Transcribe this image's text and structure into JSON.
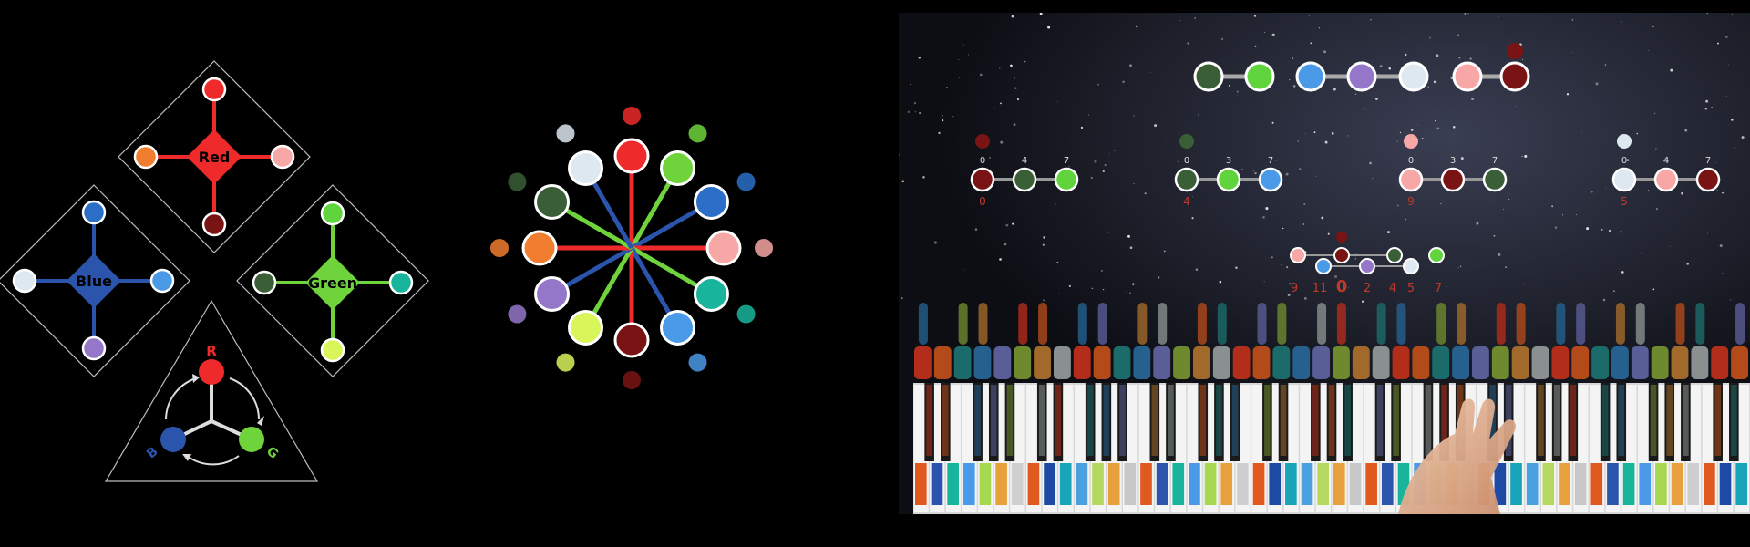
{
  "diamonds": [
    {
      "id": "red",
      "label": "Red",
      "center_color": "#ee2a2a",
      "line_color": "#ee2a2a",
      "nodes": [
        "#ee2a2a",
        "#f7a7a5",
        "#7a1414",
        "#f07e2e"
      ]
    },
    {
      "id": "blue",
      "label": "Blue",
      "center_color": "#2b55ad",
      "line_color": "#2b55ad",
      "nodes": [
        "#2b6ec7",
        "#4a9ae8",
        "#9577c9",
        "#dde8f0"
      ]
    },
    {
      "id": "green",
      "label": "Green",
      "center_color": "#6fd43c",
      "line_color": "#6fd43c",
      "nodes": [
        "#5fd43c",
        "#18b59c",
        "#d8f55a",
        "#3a5e36"
      ]
    }
  ],
  "triangle": {
    "r": "R",
    "g": "G",
    "b": "B",
    "r_color": "#ee2a2a",
    "g_color": "#6fd43c",
    "b_color": "#2b55ad"
  },
  "wheel": {
    "spokes": [
      {
        "color": "#ee2a2a",
        "line": "#ee2a2a",
        "icon": "blood-drop-icon"
      },
      {
        "color": "#6fd43c",
        "line": "#6fd43c",
        "icon": "leaf-icon"
      },
      {
        "color": "#2b6ec7",
        "line": "#2b55ad",
        "icon": "wave-icon"
      },
      {
        "color": "#f7a7a5",
        "line": "#ee2a2a",
        "icon": "peach-icon"
      },
      {
        "color": "#18b59c",
        "line": "#6fd43c",
        "icon": "seaweed-icon"
      },
      {
        "color": "#4a9ae8",
        "line": "#2b55ad",
        "icon": "iceberg-icon"
      },
      {
        "color": "#7a1414",
        "line": "#ee2a2a",
        "icon": "berry-icon"
      },
      {
        "color": "#d8f55a",
        "line": "#6fd43c",
        "icon": "lime-icon"
      },
      {
        "color": "#9577c9",
        "line": "#2b55ad",
        "icon": "grapes-icon"
      },
      {
        "color": "#f07e2e",
        "line": "#ee2a2a",
        "icon": "fire-icon"
      },
      {
        "color": "#3a5e36",
        "line": "#6fd43c",
        "icon": "olive-icon"
      },
      {
        "color": "#dde8f0",
        "line": "#2b55ad",
        "icon": "snowflake-icon"
      }
    ]
  },
  "video": {
    "top_chain": [
      "#3a5e36",
      "#5fd43c",
      "#4a9ae8",
      "#9577c9",
      "#dde8f0",
      "#f7a7a5",
      "#7a1414"
    ],
    "chords": [
      {
        "labels": [
          "0",
          "4",
          "7"
        ],
        "colors": [
          "#7a1414",
          "#3a5e36",
          "#5fd43c"
        ],
        "root_number": "0",
        "icon_color": "#7a1414"
      },
      {
        "labels": [
          "0",
          "3",
          "7"
        ],
        "colors": [
          "#3a5e36",
          "#5fd43c",
          "#4a9ae8"
        ],
        "root_number": "4",
        "icon_color": "#3a5e36"
      },
      {
        "labels": [
          "0",
          "3",
          "7"
        ],
        "colors": [
          "#f7a7a5",
          "#7a1414",
          "#3a5e36"
        ],
        "root_number": "9",
        "icon_color": "#f7a7a5"
      },
      {
        "labels": [
          "0",
          "4",
          "7"
        ],
        "colors": [
          "#dde8f0",
          "#f7a7a5",
          "#7a1414"
        ],
        "root_number": "5",
        "icon_color": "#dde8f0"
      }
    ],
    "progression_numbers": [
      "9",
      "11",
      "0",
      "2",
      "4",
      "5",
      "7"
    ],
    "key_colors": [
      "#e05a20",
      "#2b55ad",
      "#18b59c",
      "#4a9ae8",
      "#a8d850",
      "#e8a03c",
      "#cfcfcf",
      "#e05a20",
      "#1d4aa5",
      "#18a5b9",
      "#4aa0e0",
      "#b5d860",
      "#e8a03c",
      "#c8c8c8"
    ],
    "cap_colors": [
      "#b22d1a",
      "#b24a1a",
      "#1b6b6a",
      "#26608e",
      "#5a5e96",
      "#6f8a2e",
      "#a26a2a",
      "#8a9090"
    ]
  }
}
